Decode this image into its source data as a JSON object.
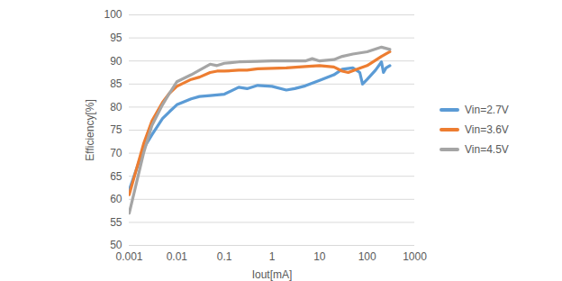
{
  "chart_data": {
    "type": "line",
    "x_label": "Iout[mA]",
    "y_label": "Efficiency[%]",
    "log": "x",
    "grid": "y",
    "legend": "right",
    "xlim": [
      0.001,
      1000
    ],
    "xticks": [
      0.001,
      0.01,
      0.1,
      1,
      10,
      100,
      1000
    ],
    "ylim": [
      50,
      100
    ],
    "yticks": [
      50,
      55,
      60,
      65,
      70,
      75,
      80,
      85,
      90,
      95,
      100
    ],
    "series": [
      {
        "name": "Vin=2.7V",
        "color": "#5b9bd5",
        "x": [
          0.001,
          0.002,
          0.003,
          0.005,
          0.007,
          0.01,
          0.02,
          0.03,
          0.05,
          0.1,
          0.2,
          0.3,
          0.5,
          1,
          2,
          3,
          5,
          10,
          20,
          30,
          50,
          70,
          80,
          100,
          150,
          200,
          220,
          250,
          300
        ],
        "values": [
          62,
          71,
          74,
          77.5,
          79,
          80.5,
          81.8,
          82.3,
          82.5,
          82.8,
          84.3,
          84,
          84.7,
          84.5,
          83.7,
          84,
          84.6,
          85.8,
          87,
          88.2,
          88.5,
          87.5,
          85,
          86,
          88,
          89.8,
          87.5,
          88.5,
          89
        ]
      },
      {
        "name": "Vin=3.6V",
        "color": "#ed7d31",
        "x": [
          0.001,
          0.002,
          0.003,
          0.005,
          0.007,
          0.01,
          0.02,
          0.03,
          0.05,
          0.07,
          0.1,
          0.2,
          0.3,
          0.5,
          1,
          2,
          5,
          10,
          20,
          30,
          40,
          60,
          100,
          200,
          300
        ],
        "values": [
          61,
          72,
          77,
          81,
          83,
          84.5,
          86,
          86.5,
          87.5,
          87.8,
          87.8,
          88,
          88,
          88.3,
          88.4,
          88.5,
          88.8,
          89,
          88.7,
          87.8,
          87.5,
          88.2,
          89,
          91,
          92
        ]
      },
      {
        "name": "Vin=4.5V",
        "color": "#a5a5a5",
        "x": [
          0.001,
          0.002,
          0.003,
          0.005,
          0.007,
          0.01,
          0.02,
          0.03,
          0.05,
          0.07,
          0.1,
          0.2,
          0.5,
          1,
          2,
          5,
          7,
          10,
          20,
          30,
          50,
          100,
          200,
          300
        ],
        "values": [
          57,
          70,
          76,
          80.5,
          83,
          85.5,
          87,
          88,
          89.3,
          89,
          89.5,
          89.8,
          89.9,
          90,
          90,
          90,
          90.5,
          90,
          90.3,
          91,
          91.5,
          92,
          93,
          92.5
        ]
      }
    ]
  }
}
